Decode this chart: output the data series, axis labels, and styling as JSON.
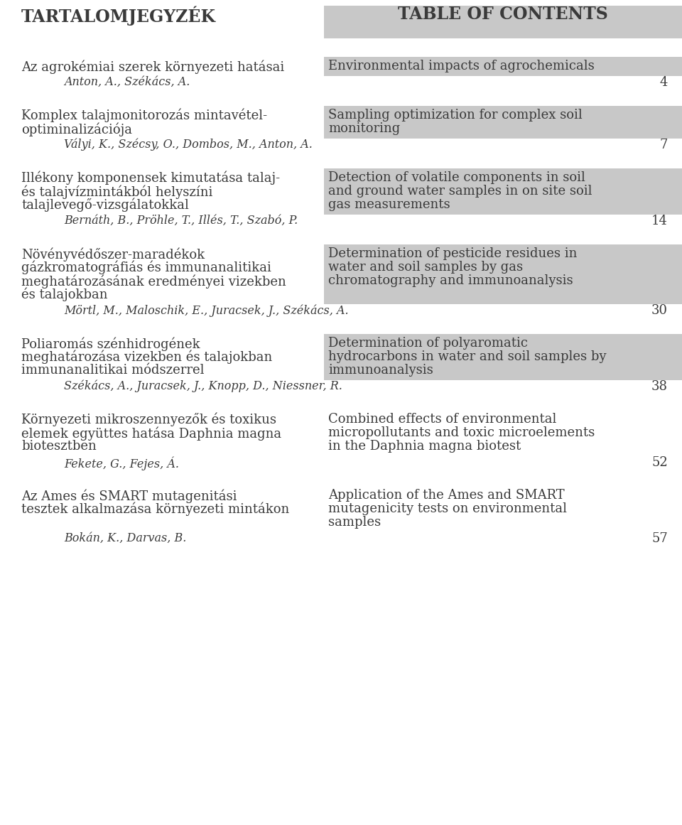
{
  "bg_color": "#ffffff",
  "gray_color": "#c8c8c8",
  "text_color": "#3a3a3a",
  "header_left": "TARTALOMJEGYZÉK",
  "header_right": "TABLE OF CONTENTS",
  "figw": 9.6,
  "figh": 11.61,
  "dpi": 100,
  "entries": [
    {
      "left_lines": [
        "Az agrokémiai szerek környezeti hatásai"
      ],
      "left_authors": "Anton, A., Székács, A.",
      "right_lines": [
        "Environmental impacts of agrochemicals"
      ],
      "page": "4",
      "gray_right": true
    },
    {
      "left_lines": [
        "Komplex talajmonitorozás mintavétel-",
        "optiminalizációja"
      ],
      "left_authors": "Vályi, K., Szécsy, O., Dombos, M., Anton, A.",
      "right_lines": [
        "Sampling optimization for complex soil",
        "monitoring"
      ],
      "page": "7",
      "gray_right": true
    },
    {
      "left_lines": [
        "Illékony komponensek kimutatása talaj-",
        "és talajvízmintákból helyszíni",
        "talajlevegő-vizsgálatokkal"
      ],
      "left_authors": "Bernáth, B., Pröhle, T., Illés, T., Szabó, P.",
      "right_lines": [
        "Detection of volatile components in soil",
        "and ground water samples in on site soil",
        "gas measurements"
      ],
      "page": "14",
      "gray_right": true
    },
    {
      "left_lines": [
        "Növényvédőszer-maradékok",
        "gázkromatográfiás és immunanalitikai",
        "meghatározásának eredményei vizekben",
        "és talajokban"
      ],
      "left_authors": "Mörtl, M., Maloschik, E., Juracsek, J., Székács, A.",
      "right_lines": [
        "Determination of pesticide residues in",
        "water and soil samples by gas",
        "chromatography and immunoanalysis"
      ],
      "page": "30",
      "gray_right": true
    },
    {
      "left_lines": [
        "Poliaromás szénhidrogének",
        "meghatározása vizekben és talajokban",
        "immunanalitikai módszerrel"
      ],
      "left_authors": "Székács, A., Juracsek, J., Knopp, D., Niessner, R.",
      "right_lines": [
        "Determination of polyaromatic",
        "hydrocarbons in water and soil samples by",
        "immunoanalysis"
      ],
      "page": "38",
      "gray_right": true
    },
    {
      "left_lines": [
        "Környezeti mikroszennyezők és toxikus",
        "elemek együttes hatása Daphnia magna",
        "biotesztben"
      ],
      "left_authors": "Fekete, G., Fejes, Á.",
      "right_lines": [
        "Combined effects of environmental",
        "micropollutants and toxic microelements",
        "in the Daphnia magna biotest"
      ],
      "right_italic_word": "Daphnia magna",
      "page": "52",
      "gray_right": false
    },
    {
      "left_lines": [
        "Az Ames és SMART mutagenitási",
        "tesztek alkalmazása környezeti mintákon"
      ],
      "left_authors": "Bokán, K., Darvas, B.",
      "right_lines": [
        "Application of the Ames and SMART",
        "mutagenicity tests on environmental",
        "samples"
      ],
      "page": "57",
      "gray_right": false
    }
  ]
}
